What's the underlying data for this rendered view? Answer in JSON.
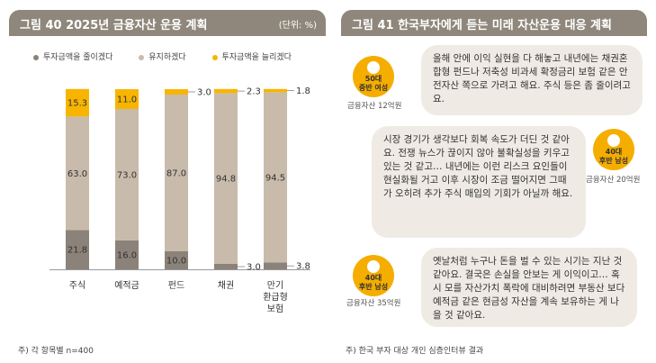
{
  "left_panel": {
    "title": "그림 40  2025년 금융자산 운용 계획",
    "unit": "(단위: %)",
    "footnote": "주) 각 항목별 n=400"
  },
  "right_panel": {
    "title": "그림 41  한국부자에게 듣는 미래 자산운용 대응 계획",
    "footnote": "주) 한국 부자 대상 개인 심층인터뷰 결과",
    "interviews": [
      {
        "label_line1": "50대",
        "label_line2": "중반 여성",
        "asset": "금융자산 12억원",
        "quote": "올해 안에 이익 실현을 다 해놓고 내년에는 채권혼합형 펀드나 저축성 비과세 확정금리 보험 같은 안전자산 쪽으로 가려고 해요. 주식 등은 좀 줄이려고요."
      },
      {
        "label_line1": "40대",
        "label_line2": "후반 남성",
        "asset": "금융자산 20억원",
        "quote": "시장 경기가 생각보다 회복 속도가 더딘 것 같아요. 전쟁 뉴스가 끊이지 않아 불확실성을 키우고 있는 것 같고… 내년에는 이런 리스크 요인들이 현실화될 거고 이후 시장이 조금 떨어지면 그때가 오히려 추가 주식 매입의 기회가 아닐까 해요."
      },
      {
        "label_line1": "40대",
        "label_line2": "후반 남성",
        "asset": "금융자산 35억원",
        "quote": "옛날처럼 누구나 돈을 벌 수 있는 시기는 지난 것 같아요. 결국은 손실을 안보는 게 이익이고… 혹시 모를 자산가치 폭락에 대비하려면 부동산 보다 예적금 같은 현금성 자산을 계속 보유하는 게 나을 것 같아요."
      }
    ]
  },
  "colors": {
    "decrease": "#8b8279",
    "maintain": "#c9bbab",
    "increase": "#f7b500",
    "header": "#8f877b",
    "bubble": "#efebe4"
  },
  "chart_data": {
    "type": "bar",
    "stacked": true,
    "orientation": "vertical",
    "categories": [
      "주식",
      "예적금",
      "펀드",
      "채권",
      "만기\n환급형\n보험"
    ],
    "series": [
      {
        "name": "투자금액을 줄이겠다",
        "values": [
          21.8,
          16.0,
          10.0,
          3.0,
          3.8
        ]
      },
      {
        "name": "유지하겠다",
        "values": [
          63.0,
          73.0,
          87.0,
          94.8,
          94.5
        ]
      },
      {
        "name": "투자금액을 늘리겠다",
        "values": [
          15.3,
          11.0,
          3.0,
          2.3,
          1.8
        ]
      }
    ],
    "value_labels": [
      [
        "21.8",
        "63.0",
        "15.3"
      ],
      [
        "16.0",
        "73.0",
        "11.0"
      ],
      [
        "10.0",
        "87.0",
        "3.0"
      ],
      [
        "3.0",
        "94.8",
        "2.3"
      ],
      [
        "3.8",
        "94.5",
        "1.8"
      ]
    ],
    "ylim": [
      0,
      100
    ],
    "legend_position": "top"
  }
}
